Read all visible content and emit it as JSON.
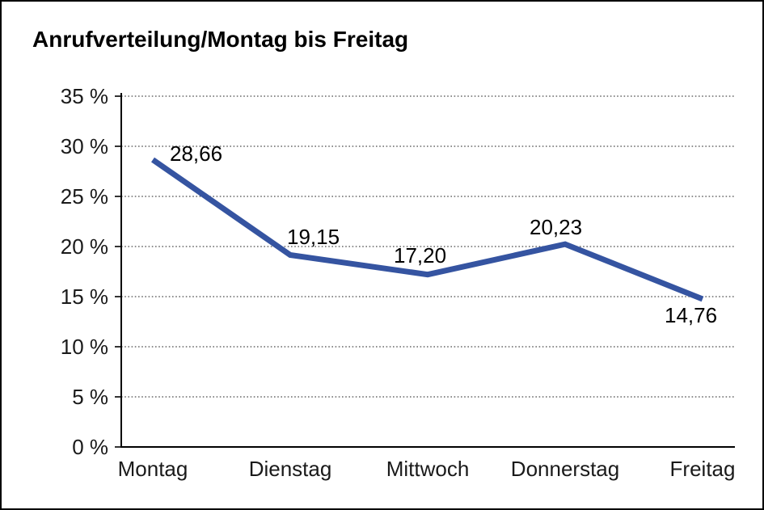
{
  "window": {
    "background_color": "#ffffff",
    "border_color": "#000000"
  },
  "chart_data": {
    "type": "line",
    "title": "Anrufverteilung/Montag bis Freitag",
    "categories": [
      "Montag",
      "Dienstag",
      "Mittwoch",
      "Donnerstag",
      "Freitag"
    ],
    "values": [
      28.66,
      19.15,
      17.2,
      20.23,
      14.76
    ],
    "value_labels": [
      "28,66",
      "19,15",
      "17,20",
      "20,23",
      "14,76"
    ],
    "series_name": "Anrufverteilung",
    "xlabel": "",
    "ylabel": "",
    "y_tick_labels": [
      "35 %",
      "30 %",
      "25 %",
      "20 %",
      "15 %",
      "10 %",
      "5 %",
      "0 %"
    ],
    "y_tick_values": [
      35,
      30,
      25,
      20,
      15,
      10,
      5,
      0
    ],
    "ylim": [
      0,
      35
    ],
    "grid": "horizontal-dotted",
    "legend_position": "none",
    "colors": {
      "line": "#3554A1",
      "axis": "#000000",
      "gridline": "#4a4a4a",
      "text": "#000000"
    }
  }
}
